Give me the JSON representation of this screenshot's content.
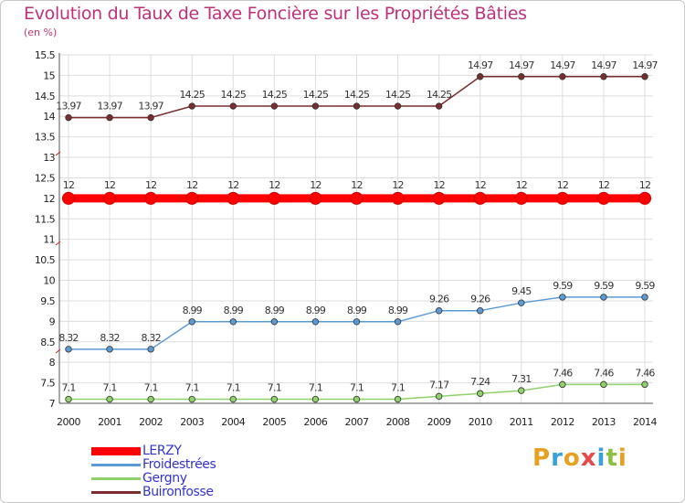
{
  "header": {
    "title": "Evolution du Taux de Taxe Foncière sur les Propriétés Bâties",
    "subtitle": "(en %)"
  },
  "logo": {
    "letters": [
      "P",
      "r",
      "o",
      "x",
      "i",
      "t",
      "i"
    ],
    "colors": [
      "#e8a020",
      "#3aa0d8",
      "#e8a020",
      "#e84848",
      "#3aa0d8",
      "#8cc040",
      "#e8a020"
    ]
  },
  "chart_data": {
    "type": "line",
    "title": "Evolution du Taux de Taxe Foncière sur les Propriétés Bâties",
    "ylabel": "(en %)",
    "xlabel": "",
    "ylim": [
      7,
      15.5
    ],
    "yticks": [
      7,
      7.5,
      8,
      8.5,
      9,
      9.5,
      10,
      10.5,
      11,
      11.5,
      12,
      12.5,
      13,
      13.5,
      14,
      14.5,
      15,
      15.5
    ],
    "ytick_labels": [
      "7",
      "7.5",
      "8",
      "8.5",
      "9",
      "9.5",
      "10",
      "10.5",
      "11",
      "11.5",
      "12",
      "12.5",
      "13",
      "13.5",
      "14",
      "14.5",
      "15",
      "15.5"
    ],
    "categories": [
      "2000",
      "2001",
      "2002",
      "2003",
      "2004",
      "2005",
      "2006",
      "2007",
      "2008",
      "2009",
      "2010",
      "2011",
      "2012",
      "2013",
      "2014"
    ],
    "legend_position": "bottom-left",
    "series": [
      {
        "name": "LERZY",
        "color": "#ff0000",
        "thick": true,
        "values": [
          12,
          12,
          12,
          12,
          12,
          12,
          12,
          12,
          12,
          12,
          12,
          12,
          12,
          12,
          12
        ],
        "labels": [
          "12",
          "12",
          "12",
          "12",
          "12",
          "12",
          "12",
          "12",
          "12",
          "12",
          "12",
          "12",
          "12",
          "12",
          "12"
        ]
      },
      {
        "name": "Froidestrées",
        "color": "#5b9bd5",
        "thick": false,
        "values": [
          8.32,
          8.32,
          8.32,
          8.99,
          8.99,
          8.99,
          8.99,
          8.99,
          8.99,
          9.26,
          9.26,
          9.45,
          9.59,
          9.59,
          9.59
        ],
        "labels": [
          "8.32",
          "8.32",
          "8.32",
          "8.99",
          "8.99",
          "8.99",
          "8.99",
          "8.99",
          "8.99",
          "9.26",
          "9.26",
          "9.45",
          "9.59",
          "9.59",
          "9.59"
        ]
      },
      {
        "name": "Gergny",
        "color": "#8fd16a",
        "thick": false,
        "values": [
          7.1,
          7.1,
          7.1,
          7.1,
          7.1,
          7.1,
          7.1,
          7.1,
          7.1,
          7.17,
          7.24,
          7.31,
          7.46,
          7.46,
          7.46
        ],
        "labels": [
          "7.1",
          "7.1",
          "7.1",
          "7.1",
          "7.1",
          "7.1",
          "7.1",
          "7.1",
          "7.1",
          "7.17",
          "7.24",
          "7.31",
          "7.46",
          "7.46",
          "7.46"
        ]
      },
      {
        "name": "Buironfosse",
        "color": "#7b2d2d",
        "thick": false,
        "values": [
          13.97,
          13.97,
          13.97,
          14.25,
          14.25,
          14.25,
          14.25,
          14.25,
          14.25,
          14.25,
          14.97,
          14.97,
          14.97,
          14.97,
          14.97
        ],
        "labels": [
          "13.97",
          "13.97",
          "13.97",
          "14.25",
          "14.25",
          "14.25",
          "14.25",
          "14.25",
          "14.25",
          "14.25",
          "14.97",
          "14.97",
          "14.97",
          "14.97",
          "14.97"
        ]
      }
    ]
  }
}
